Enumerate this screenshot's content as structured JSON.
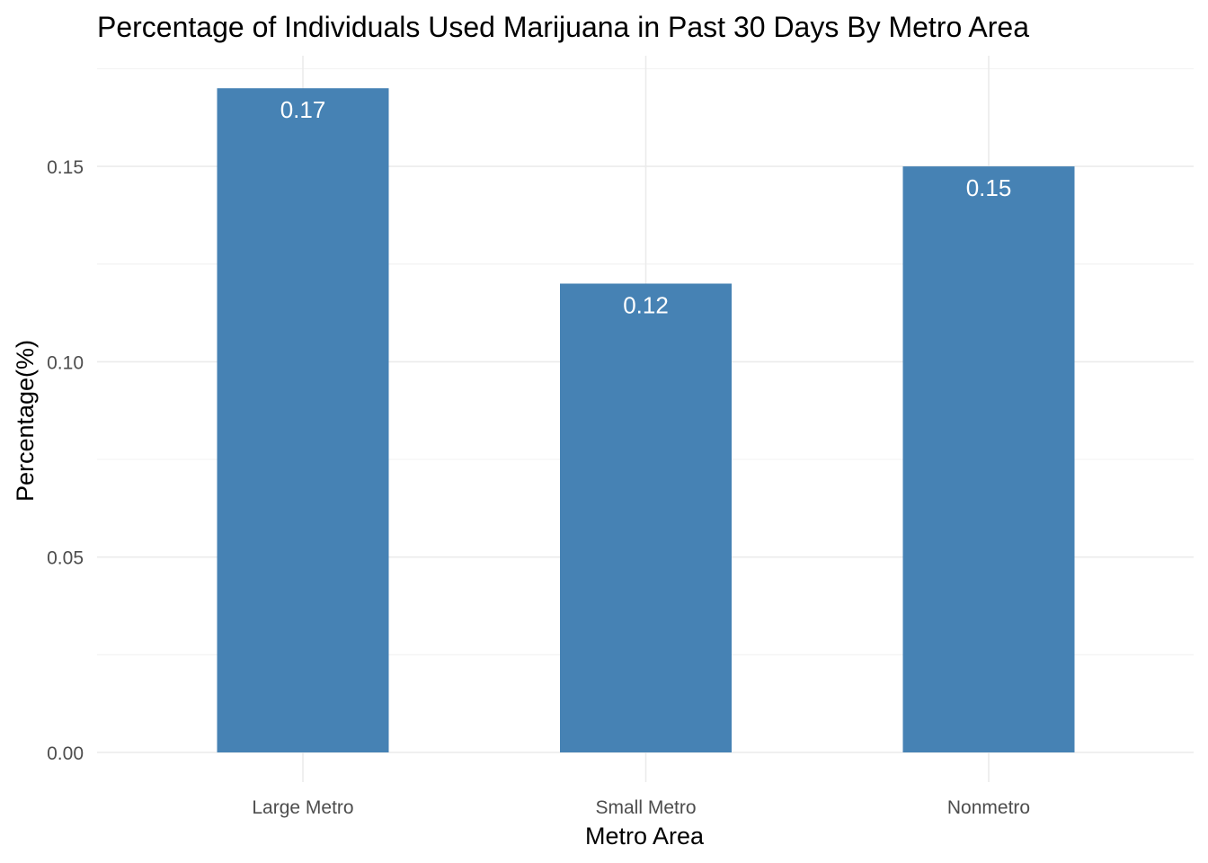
{
  "chart_data": {
    "type": "bar",
    "title": "Percentage of Individuals Used Marijuana in Past 30 Days By Metro Area",
    "xlabel": "Metro Area",
    "ylabel": "Percentage(%)",
    "categories": [
      "Large Metro",
      "Small Metro",
      "Nonmetro"
    ],
    "values": [
      0.17,
      0.12,
      0.15
    ],
    "data_labels": [
      "0.17",
      "0.12",
      "0.15"
    ],
    "yticks": [
      0.0,
      0.05,
      0.1,
      0.15
    ],
    "ytick_labels": [
      "0.00",
      "0.05",
      "0.10",
      "0.15"
    ],
    "ylim": [
      0,
      0.1734
    ],
    "grid": true,
    "legend": "none",
    "bar_color": "#4682B4"
  }
}
